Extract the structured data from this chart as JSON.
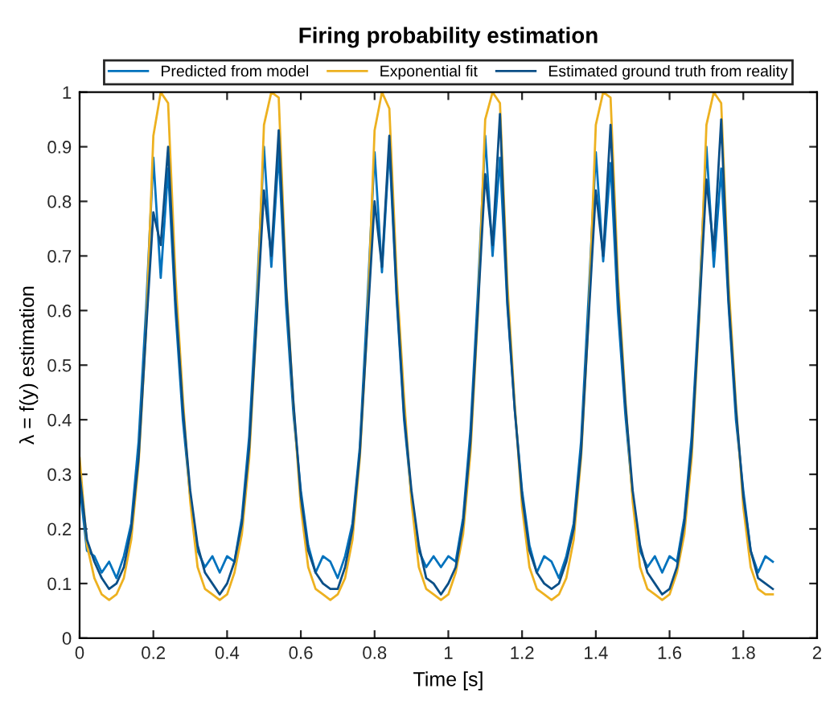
{
  "chart_data": {
    "type": "line",
    "title": "Firing probability estimation",
    "xlabel": "Time [s]",
    "ylabel": "λ = f(y) estimation",
    "x": [
      0.0,
      0.02,
      0.04,
      0.06,
      0.08,
      0.1,
      0.12,
      0.14,
      0.16,
      0.18,
      0.2,
      0.22,
      0.24,
      0.26,
      0.28,
      0.3,
      0.32,
      0.34,
      0.36,
      0.38,
      0.4,
      0.42,
      0.44,
      0.46,
      0.48,
      0.5,
      0.52,
      0.54,
      0.56,
      0.58,
      0.6,
      0.62,
      0.64,
      0.66,
      0.68,
      0.7,
      0.72,
      0.74,
      0.76,
      0.78,
      0.8,
      0.82,
      0.84,
      0.86,
      0.88,
      0.9,
      0.92,
      0.94,
      0.96,
      0.98,
      1.0,
      1.02,
      1.04,
      1.06,
      1.08,
      1.1,
      1.12,
      1.14,
      1.16,
      1.18,
      1.2,
      1.22,
      1.24,
      1.26,
      1.28,
      1.3,
      1.32,
      1.34,
      1.36,
      1.38,
      1.4,
      1.42,
      1.44,
      1.46,
      1.48,
      1.5,
      1.52,
      1.54,
      1.56,
      1.58,
      1.6,
      1.62,
      1.64,
      1.66,
      1.68,
      1.7,
      1.72,
      1.74,
      1.76,
      1.78,
      1.8,
      1.82,
      1.84,
      1.86,
      1.88
    ],
    "series": [
      {
        "name": "Predicted from model",
        "color": "#0072bd",
        "values": [
          0.28,
          0.16,
          0.15,
          0.12,
          0.14,
          0.11,
          0.15,
          0.21,
          0.36,
          0.6,
          0.88,
          0.66,
          0.86,
          0.6,
          0.4,
          0.26,
          0.16,
          0.13,
          0.15,
          0.12,
          0.15,
          0.14,
          0.22,
          0.37,
          0.62,
          0.9,
          0.68,
          0.89,
          0.61,
          0.41,
          0.27,
          0.17,
          0.12,
          0.15,
          0.14,
          0.11,
          0.15,
          0.21,
          0.35,
          0.61,
          0.89,
          0.67,
          0.9,
          0.62,
          0.4,
          0.26,
          0.16,
          0.13,
          0.15,
          0.13,
          0.15,
          0.14,
          0.22,
          0.38,
          0.63,
          0.92,
          0.7,
          0.88,
          0.61,
          0.42,
          0.27,
          0.17,
          0.12,
          0.15,
          0.14,
          0.11,
          0.15,
          0.21,
          0.36,
          0.62,
          0.89,
          0.69,
          0.87,
          0.6,
          0.41,
          0.26,
          0.16,
          0.13,
          0.15,
          0.12,
          0.15,
          0.14,
          0.22,
          0.37,
          0.61,
          0.9,
          0.68,
          0.86,
          0.61,
          0.4,
          0.27,
          0.16,
          0.12,
          0.15,
          0.14
        ]
      },
      {
        "name": "Exponential fit",
        "color": "#edb120",
        "values": [
          0.33,
          0.17,
          0.11,
          0.08,
          0.07,
          0.08,
          0.11,
          0.18,
          0.32,
          0.56,
          0.92,
          1.0,
          0.98,
          0.66,
          0.44,
          0.25,
          0.13,
          0.09,
          0.08,
          0.07,
          0.08,
          0.12,
          0.19,
          0.33,
          0.58,
          0.94,
          1.0,
          0.99,
          0.65,
          0.43,
          0.24,
          0.13,
          0.09,
          0.08,
          0.07,
          0.08,
          0.11,
          0.18,
          0.33,
          0.57,
          0.93,
          1.0,
          0.97,
          0.66,
          0.44,
          0.25,
          0.13,
          0.09,
          0.08,
          0.07,
          0.08,
          0.12,
          0.19,
          0.34,
          0.59,
          0.95,
          1.0,
          0.98,
          0.65,
          0.43,
          0.24,
          0.13,
          0.09,
          0.08,
          0.07,
          0.08,
          0.11,
          0.18,
          0.33,
          0.58,
          0.94,
          1.0,
          0.99,
          0.66,
          0.44,
          0.25,
          0.13,
          0.09,
          0.08,
          0.07,
          0.08,
          0.12,
          0.19,
          0.33,
          0.58,
          0.94,
          1.0,
          0.98,
          0.65,
          0.43,
          0.24,
          0.13,
          0.09,
          0.08,
          0.08
        ]
      },
      {
        "name": "Estimated ground truth from reality",
        "color": "#0b4f87",
        "values": [
          0.3,
          0.18,
          0.14,
          0.11,
          0.09,
          0.1,
          0.13,
          0.2,
          0.33,
          0.56,
          0.78,
          0.72,
          0.9,
          0.62,
          0.42,
          0.27,
          0.17,
          0.12,
          0.1,
          0.08,
          0.1,
          0.14,
          0.21,
          0.35,
          0.58,
          0.82,
          0.7,
          0.93,
          0.64,
          0.43,
          0.26,
          0.16,
          0.12,
          0.1,
          0.09,
          0.09,
          0.13,
          0.2,
          0.34,
          0.57,
          0.8,
          0.68,
          0.92,
          0.63,
          0.41,
          0.27,
          0.17,
          0.11,
          0.1,
          0.08,
          0.1,
          0.13,
          0.21,
          0.36,
          0.6,
          0.85,
          0.72,
          0.96,
          0.62,
          0.42,
          0.26,
          0.16,
          0.12,
          0.1,
          0.09,
          0.1,
          0.14,
          0.2,
          0.34,
          0.58,
          0.82,
          0.7,
          0.94,
          0.63,
          0.43,
          0.27,
          0.17,
          0.12,
          0.1,
          0.08,
          0.09,
          0.13,
          0.21,
          0.35,
          0.59,
          0.84,
          0.71,
          0.95,
          0.62,
          0.42,
          0.26,
          0.16,
          0.11,
          0.1,
          0.09
        ]
      }
    ],
    "xlim": [
      0,
      2
    ],
    "xticks": [
      0,
      0.2,
      0.4,
      0.6,
      0.8,
      1,
      1.2,
      1.4,
      1.6,
      1.8,
      2
    ],
    "ylim": [
      0,
      1
    ],
    "yticks": [
      0,
      0.1,
      0.2,
      0.3,
      0.4,
      0.5,
      0.6,
      0.7,
      0.8,
      0.9,
      1
    ],
    "legend": "top",
    "grid": false
  }
}
